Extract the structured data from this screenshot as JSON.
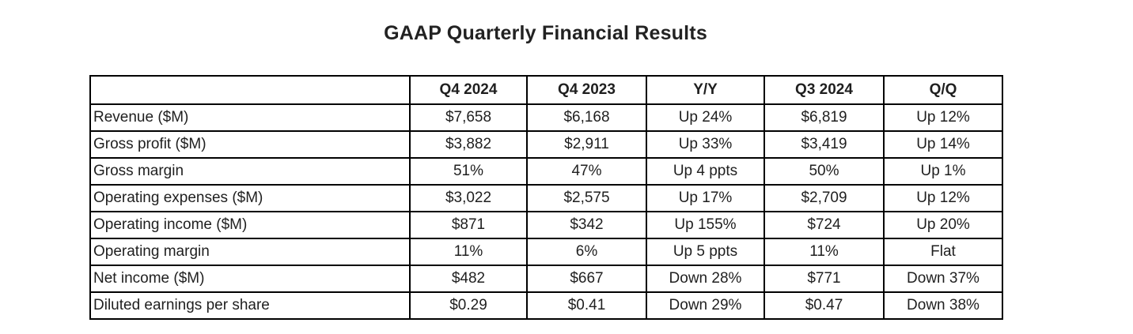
{
  "page": {
    "title": "GAAP Quarterly Financial Results"
  },
  "colors": {
    "background": "#ffffff",
    "text": "#1f1f1f",
    "title_text": "#222222",
    "table_border": "#000000"
  },
  "table": {
    "header": [
      "",
      "Q4 2024",
      "Q4 2023",
      "Y/Y",
      "Q3 2024",
      "Q/Q"
    ],
    "rows": [
      {
        "label": "Revenue ($M)",
        "values": [
          "$7,658",
          "$6,168",
          "Up 24%",
          "$6,819",
          "Up 12%"
        ]
      },
      {
        "label": "Gross profit ($M)",
        "values": [
          "$3,882",
          "$2,911",
          "Up 33%",
          "$3,419",
          "Up 14%"
        ]
      },
      {
        "label": "Gross margin",
        "values": [
          "51%",
          "47%",
          "Up 4 ppts",
          "50%",
          "Up 1%"
        ]
      },
      {
        "label": "Operating expenses ($M)",
        "values": [
          "$3,022",
          "$2,575",
          "Up 17%",
          "$2,709",
          "Up 12%"
        ]
      },
      {
        "label": "Operating income ($M)",
        "values": [
          "$871",
          "$342",
          "Up 155%",
          "$724",
          "Up 20%"
        ]
      },
      {
        "label": "Operating margin",
        "values": [
          "11%",
          "6%",
          "Up 5 ppts",
          "11%",
          "Flat"
        ]
      },
      {
        "label": "Net income ($M)",
        "values": [
          "$482",
          "$667",
          "Down 28%",
          "$771",
          "Down 37%"
        ]
      },
      {
        "label": "Diluted earnings per share",
        "values": [
          "$0.29",
          "$0.41",
          "Down 29%",
          "$0.47",
          "Down 38%"
        ]
      }
    ]
  },
  "chart_data": {
    "type": "table",
    "title": "GAAP Quarterly Financial Results",
    "columns": [
      "",
      "Q4 2024",
      "Q4 2023",
      "Y/Y",
      "Q3 2024",
      "Q/Q"
    ],
    "rows": [
      [
        "Revenue ($M)",
        "$7,658",
        "$6,168",
        "Up 24%",
        "$6,819",
        "Up 12%"
      ],
      [
        "Gross profit ($M)",
        "$3,882",
        "$2,911",
        "Up 33%",
        "$3,419",
        "Up 14%"
      ],
      [
        "Gross margin",
        "51%",
        "47%",
        "Up 4 ppts",
        "50%",
        "Up 1%"
      ],
      [
        "Operating expenses ($M)",
        "$3,022",
        "$2,575",
        "Up 17%",
        "$2,709",
        "Up 12%"
      ],
      [
        "Operating income ($M)",
        "$871",
        "$342",
        "Up 155%",
        "$724",
        "Up 20%"
      ],
      [
        "Operating margin",
        "11%",
        "6%",
        "Up 5 ppts",
        "11%",
        "Flat"
      ],
      [
        "Net income ($M)",
        "$482",
        "$667",
        "Down 28%",
        "$771",
        "Down 37%"
      ],
      [
        "Diluted earnings per share",
        "$0.29",
        "$0.41",
        "Down 29%",
        "$0.47",
        "Down 38%"
      ]
    ]
  }
}
